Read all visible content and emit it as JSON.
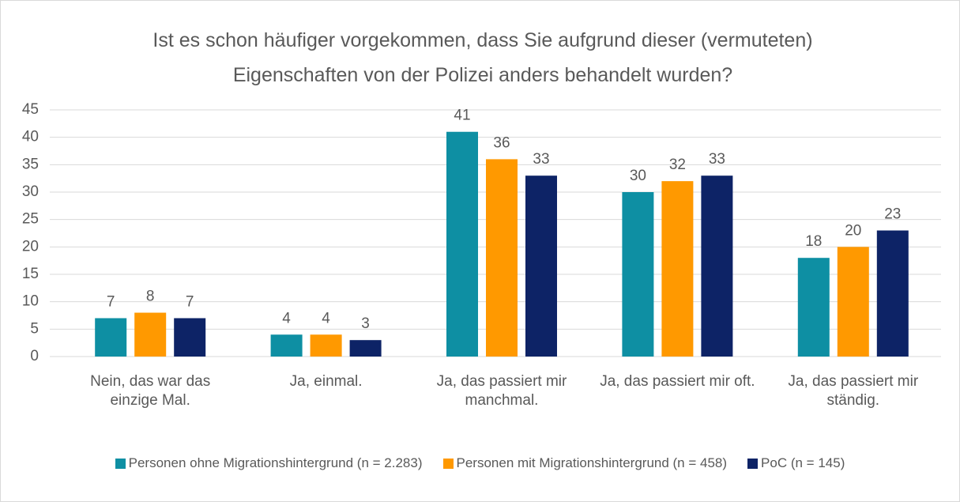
{
  "chart_data": {
    "type": "bar",
    "title": "Ist es schon häufiger vorgekommen, dass Sie aufgrund dieser (vermuteten) Eigenschaften von der Polizei anders behandelt wurden?",
    "categories": [
      "Nein, das war das einzige Mal.",
      "Ja, einmal.",
      "Ja, das passiert mir manchmal.",
      "Ja, das passiert mir oft.",
      "Ja, das passiert mir ständig."
    ],
    "series": [
      {
        "name": "Personen ohne Migrationshintergrund (n = 2.283)",
        "color": "#0e8fa3",
        "values": [
          7,
          4,
          41,
          30,
          18
        ]
      },
      {
        "name": "Personen mit Migrationshintergrund (n = 458)",
        "color": "#ff9900",
        "values": [
          8,
          4,
          36,
          32,
          20
        ]
      },
      {
        "name": "PoC (n = 145)",
        "color": "#0d2366",
        "values": [
          7,
          3,
          33,
          33,
          23
        ]
      }
    ],
    "ylim": [
      0,
      45
    ],
    "yticks": [
      0,
      5,
      10,
      15,
      20,
      25,
      30,
      35,
      40,
      45
    ],
    "grid": true,
    "legend": "bottom"
  }
}
